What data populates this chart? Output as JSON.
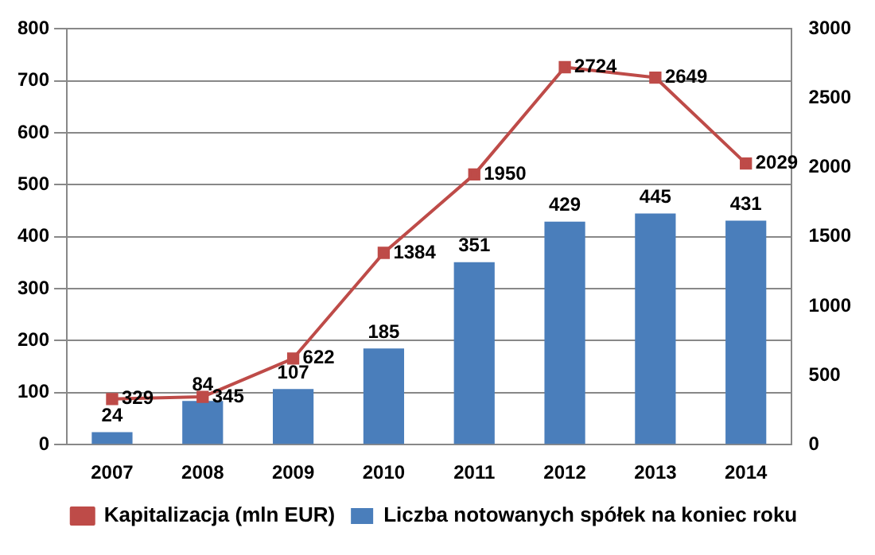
{
  "chart_data": {
    "type": "bar",
    "categories": [
      "2007",
      "2008",
      "2009",
      "2010",
      "2011",
      "2012",
      "2013",
      "2014"
    ],
    "series": [
      {
        "name": "Liczba notowanych spółek na koniec roku",
        "color": "#4a7ebb",
        "values": [
          24,
          84,
          107,
          185,
          351,
          429,
          445,
          431
        ]
      },
      {
        "name": "Kapitalizacja (mln EUR)",
        "type": "line",
        "axis": "y2",
        "color": "#be4b48",
        "marker": "square",
        "values": [
          329,
          345,
          622,
          1384,
          1950,
          2724,
          2649,
          2029
        ]
      }
    ],
    "ylim": [
      0,
      800
    ],
    "yticks": [
      0,
      100,
      200,
      300,
      400,
      500,
      600,
      700,
      800
    ],
    "y2lim": [
      0,
      3000
    ],
    "y2ticks": [
      0,
      500,
      1000,
      1500,
      2000,
      2500,
      3000
    ],
    "grid": "y",
    "legend": "bottom",
    "data_labels": true
  }
}
